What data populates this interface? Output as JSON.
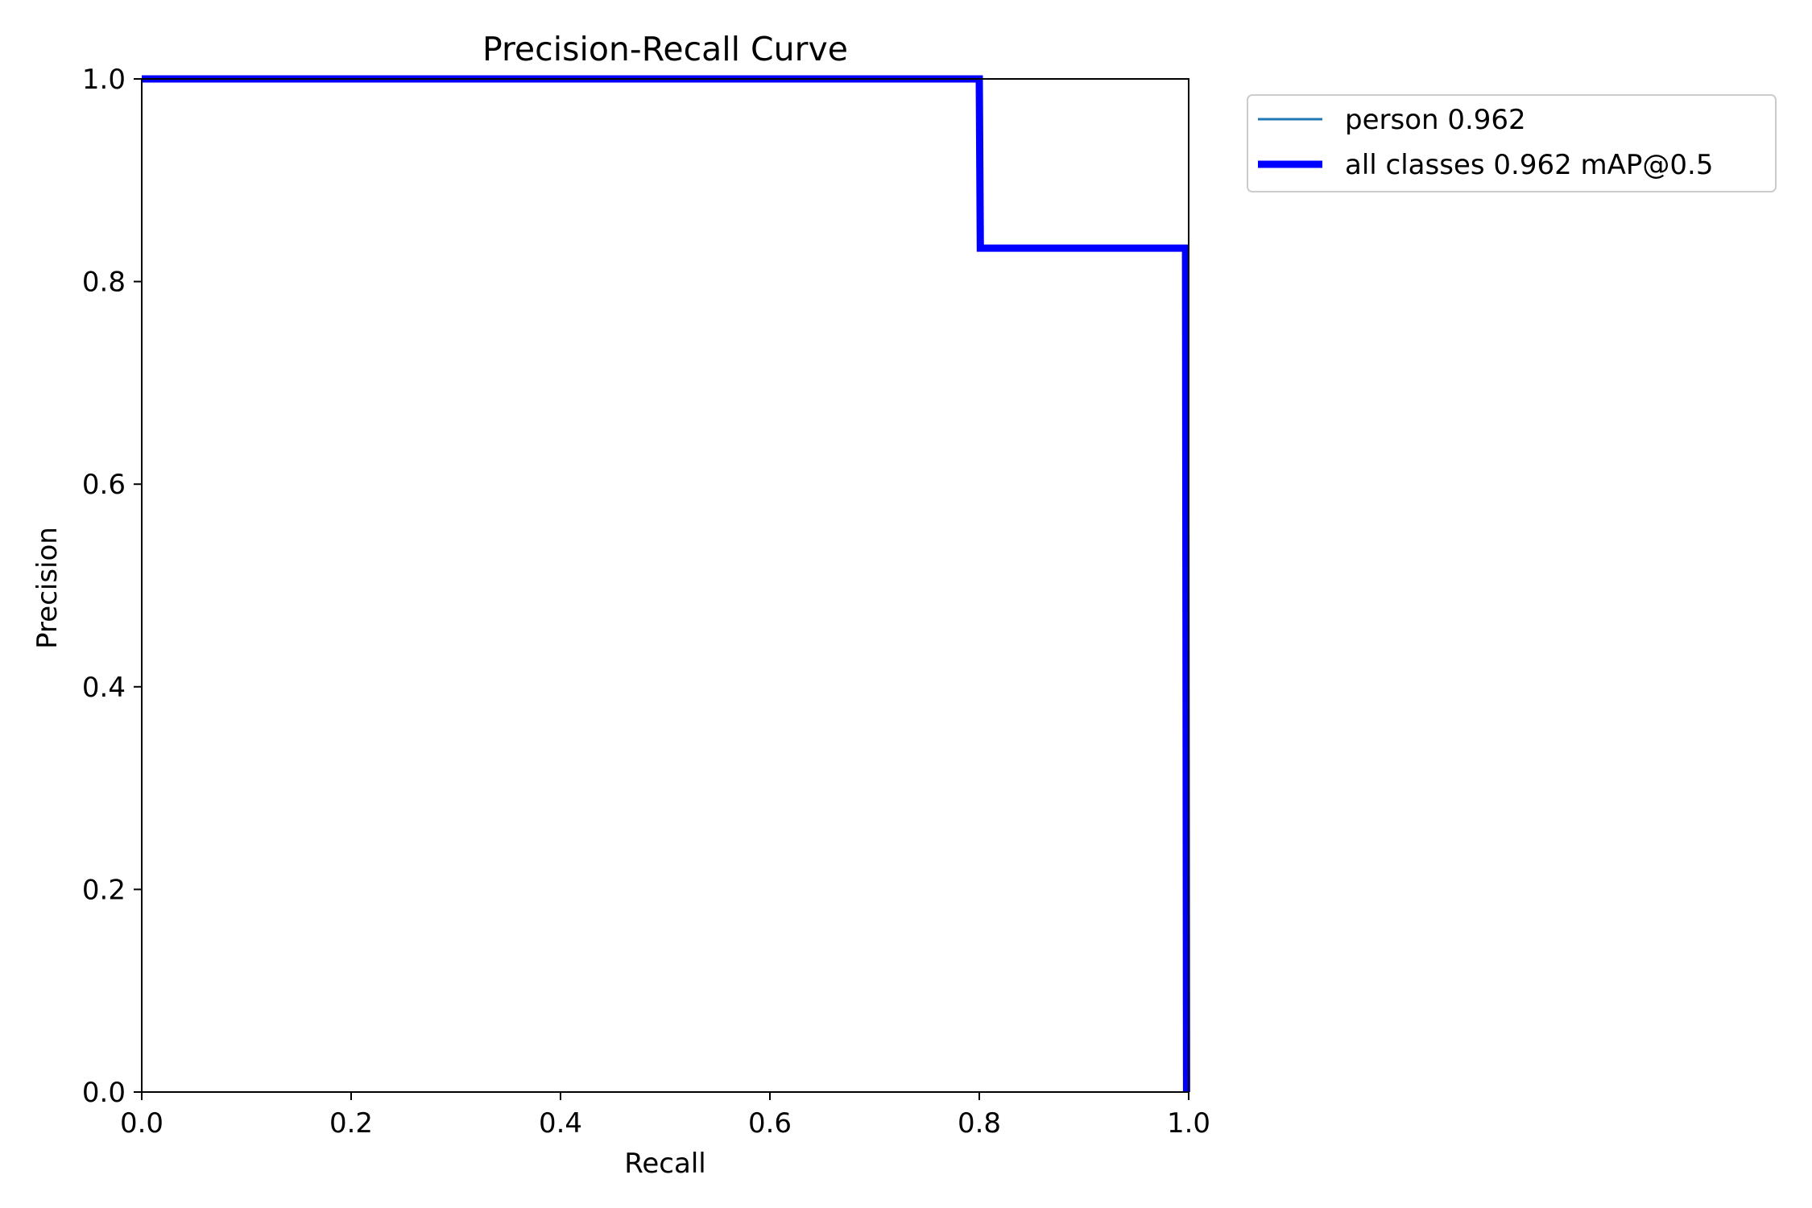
{
  "chart_data": {
    "type": "line",
    "title": "Precision-Recall Curve",
    "xlabel": "Recall",
    "ylabel": "Precision",
    "xlim": [
      0,
      1
    ],
    "ylim": [
      0,
      1
    ],
    "xticks": [
      "0.0",
      "0.2",
      "0.4",
      "0.6",
      "0.8",
      "1.0"
    ],
    "yticks": [
      "0.0",
      "0.2",
      "0.4",
      "0.6",
      "0.8",
      "1.0"
    ],
    "grid": false,
    "legend_position": "outside-top-right",
    "series": [
      {
        "name": "person 0.962",
        "color": "#1f77b4",
        "line_style": "thin",
        "x": [
          0.0,
          0.8,
          0.801,
          0.997,
          0.998
        ],
        "y": [
          1.0,
          1.0,
          0.833,
          0.833,
          0.0
        ]
      },
      {
        "name": "all classes 0.962 mAP@0.5",
        "color": "#0000ff",
        "line_style": "thick",
        "x": [
          0.0,
          0.8,
          0.801,
          0.997,
          0.998
        ],
        "y": [
          1.0,
          1.0,
          0.833,
          0.833,
          0.0
        ]
      }
    ]
  }
}
